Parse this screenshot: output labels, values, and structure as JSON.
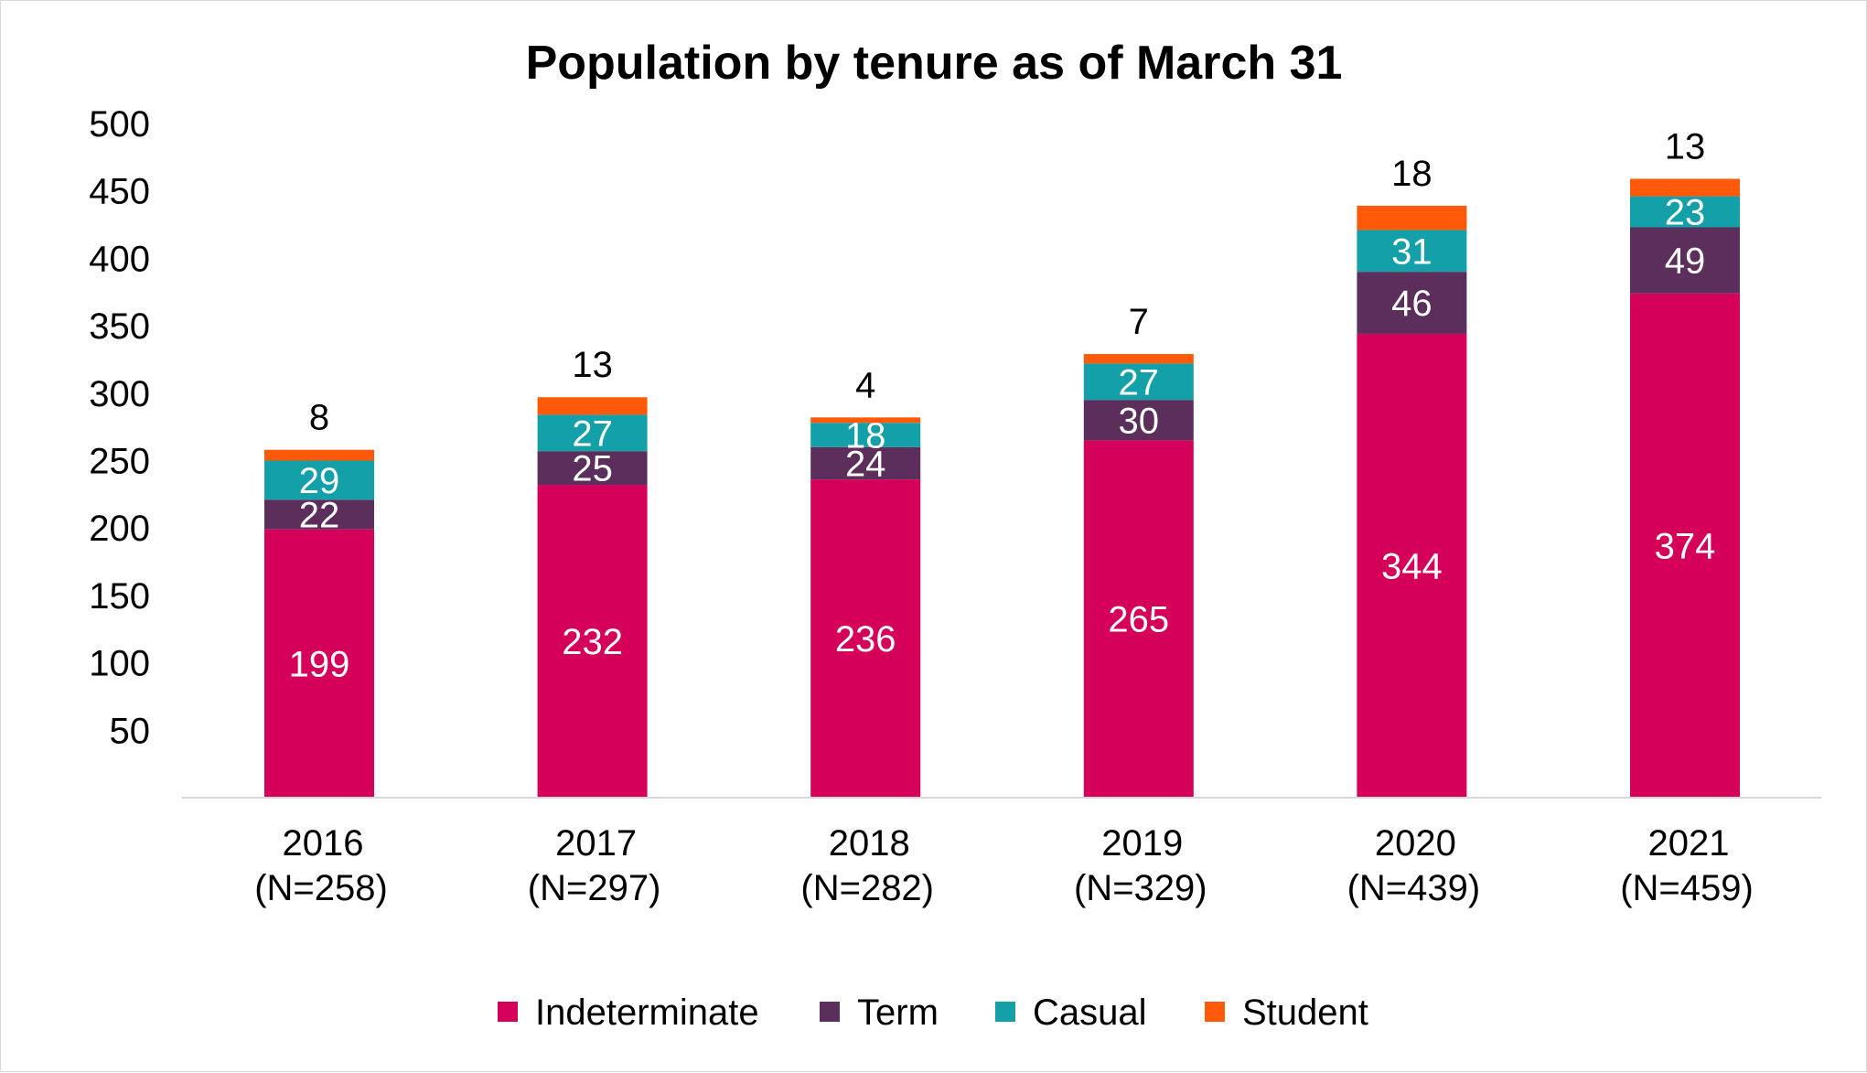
{
  "chart_data": {
    "type": "bar",
    "stacked": true,
    "title": "Population by tenure as of March 31",
    "xlabel": "",
    "ylabel": "",
    "ylim": [
      0,
      500
    ],
    "yticks": [
      "500",
      "450",
      "400",
      "350",
      "300",
      "250",
      "200",
      "150",
      "100",
      "50"
    ],
    "categories": [
      {
        "year": "2016",
        "n": "(N=258)"
      },
      {
        "year": "2017",
        "n": "(N=297)"
      },
      {
        "year": "2018",
        "n": "(N=282)"
      },
      {
        "year": "2019",
        "n": "(N=329)"
      },
      {
        "year": "2020",
        "n": "(N=439)"
      },
      {
        "year": "2021",
        "n": "(N=459)"
      }
    ],
    "series": [
      {
        "name": "Indeterminate",
        "color": "#d4005a",
        "label_color": "#ffffff",
        "values": [
          199,
          232,
          236,
          265,
          344,
          374
        ]
      },
      {
        "name": "Term",
        "color": "#5c2e5b",
        "label_color": "#ffffff",
        "values": [
          22,
          25,
          24,
          30,
          46,
          49
        ]
      },
      {
        "name": "Casual",
        "color": "#13a0a8",
        "label_color": "#ffffff",
        "values": [
          29,
          27,
          18,
          27,
          31,
          23
        ]
      },
      {
        "name": "Student",
        "color": "#ff5a0a",
        "label_color": "#000000",
        "label_position": "above",
        "values": [
          8,
          13,
          4,
          7,
          18,
          13
        ]
      }
    ],
    "grid": false,
    "legend_position": "bottom"
  }
}
